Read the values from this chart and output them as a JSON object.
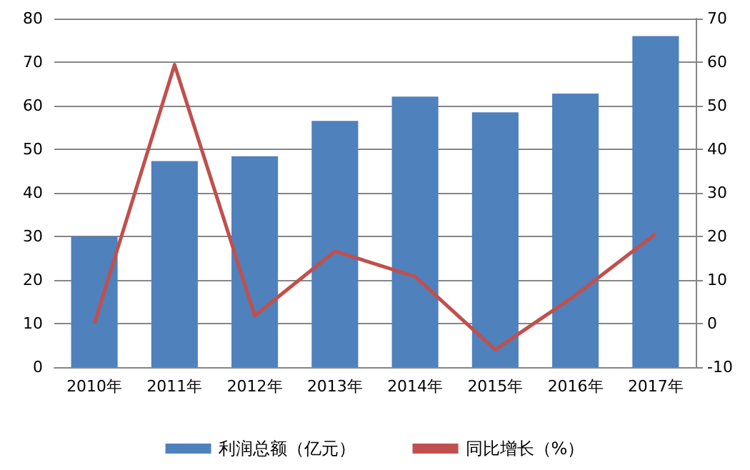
{
  "chart_data": {
    "type": "bar",
    "categories": [
      "2010年",
      "2011年",
      "2012年",
      "2013年",
      "2014年",
      "2015年",
      "2016年",
      "2017年"
    ],
    "series": [
      {
        "name": "利润总额（亿元）",
        "color": "#4f81bd",
        "values": [
          30.0,
          47.3,
          48.4,
          56.5,
          62.1,
          58.5,
          62.8,
          76.0
        ]
      },
      {
        "name": "同比增长（%）",
        "type": "line",
        "axis": "y2",
        "color": "#c0504d",
        "values": [
          0,
          59.4,
          1.8,
          16.6,
          10.8,
          -6.0,
          6.5,
          20.6
        ]
      }
    ],
    "ylim": [
      0,
      80
    ],
    "yticks": [
      0,
      10,
      20,
      30,
      40,
      50,
      60,
      70,
      80
    ],
    "y2lim": [
      -10,
      70
    ],
    "y2ticks": [
      -10,
      0,
      10,
      20,
      30,
      40,
      50,
      60,
      70
    ],
    "grid": "y",
    "legend": "bottom",
    "marker": "none",
    "line_style": "solid"
  }
}
